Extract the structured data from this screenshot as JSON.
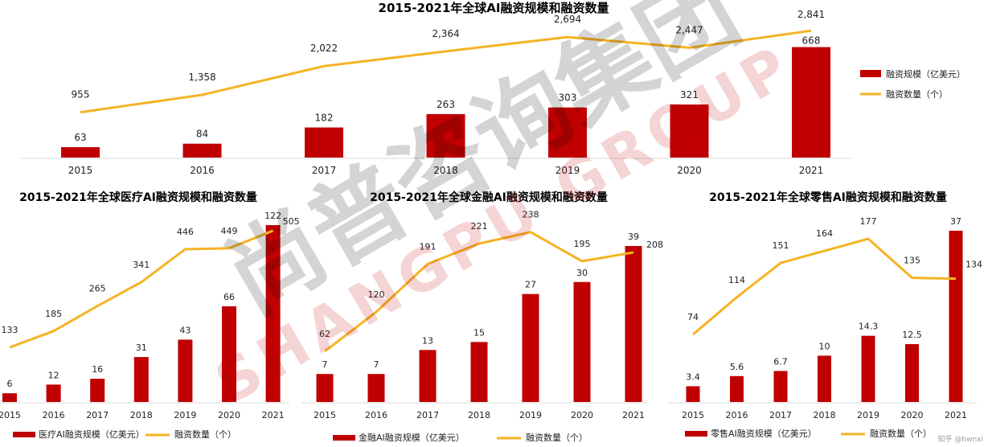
{
  "chart_data": [
    {
      "type": "bar",
      "title": "2015-2021年全球AI融资规模和融资数量",
      "categories": [
        "2015",
        "2016",
        "2017",
        "2018",
        "2019",
        "2020",
        "2021"
      ],
      "series": [
        {
          "name": "融资规模（亿美元）",
          "type": "bar",
          "values": [
            63,
            84,
            182,
            263,
            303,
            321,
            668
          ],
          "value_labels": [
            "63",
            "84",
            "182",
            "263",
            "303",
            "321",
            "668"
          ]
        },
        {
          "name": "融资数量（个）",
          "type": "line",
          "values": [
            955,
            1358,
            2022,
            2364,
            2694,
            2447,
            2841
          ],
          "value_labels": [
            "955",
            "1,358",
            "2,022",
            "2,364",
            "2,694",
            "2,447",
            "2,841"
          ]
        }
      ],
      "legend_position": "right"
    },
    {
      "type": "bar",
      "title": "2015-2021年全球医疗AI融资规模和融资数量",
      "categories": [
        "2015",
        "2016",
        "2017",
        "2018",
        "2019",
        "2020",
        "2021"
      ],
      "series": [
        {
          "name": "医疗AI融资规模（亿美元）",
          "type": "bar",
          "values": [
            6,
            12,
            16,
            31,
            43,
            66,
            122
          ],
          "value_labels": [
            "6",
            "12",
            "16",
            "31",
            "43",
            "66",
            "122"
          ]
        },
        {
          "name": "融资数量（个）",
          "type": "line",
          "values": [
            133,
            185,
            265,
            341,
            446,
            449,
            505
          ],
          "value_labels": [
            "133",
            "185",
            "265",
            "341",
            "446",
            "449",
            "505"
          ]
        }
      ],
      "legend_position": "bottom"
    },
    {
      "type": "bar",
      "title": "2015-2021年全球金融AI融资规模和融资数量",
      "categories": [
        "2015",
        "2016",
        "2017",
        "2018",
        "2019",
        "2020",
        "2021"
      ],
      "series": [
        {
          "name": "金融AI融资规模（亿美元）",
          "type": "bar",
          "values": [
            7,
            7,
            13,
            15,
            27,
            30,
            39
          ],
          "value_labels": [
            "7",
            "7",
            "13",
            "15",
            "27",
            "30",
            "39"
          ]
        },
        {
          "name": "融资数量（个）",
          "type": "line",
          "values": [
            62,
            120,
            191,
            221,
            238,
            195,
            208
          ],
          "value_labels": [
            "62",
            "120",
            "191",
            "221",
            "238",
            "195",
            "208"
          ]
        }
      ],
      "legend_position": "bottom"
    },
    {
      "type": "bar",
      "title": "2015-2021年全球零售AI融资规模和融资数量",
      "categories": [
        "2015",
        "2016",
        "2017",
        "2018",
        "2019",
        "2020",
        "2021"
      ],
      "series": [
        {
          "name": "零售AI融资规模（亿美元）",
          "type": "bar",
          "values": [
            3.4,
            5.6,
            6.7,
            10,
            14.3,
            12.5,
            37
          ],
          "value_labels": [
            "3.4",
            "5.6",
            "6.7",
            "10",
            "14.3",
            "12.5",
            "37"
          ]
        },
        {
          "name": "融资数量（个）",
          "type": "line",
          "values": [
            74,
            114,
            151,
            164,
            177,
            135,
            134
          ],
          "value_labels": [
            "74",
            "114",
            "151",
            "164",
            "177",
            "135",
            "134"
          ]
        }
      ],
      "legend_position": "bottom"
    }
  ],
  "colors": {
    "bar": "#c00000",
    "line": "#f5b324",
    "text": "#222222",
    "axis": "#d9d9d9",
    "watermark": "#000000",
    "watermark_brand": "#c00000"
  },
  "watermark": {
    "cn": "尚普咨询集团",
    "en": "SHANGPU GROUP"
  },
  "credit": "知乎 @hwnxi"
}
